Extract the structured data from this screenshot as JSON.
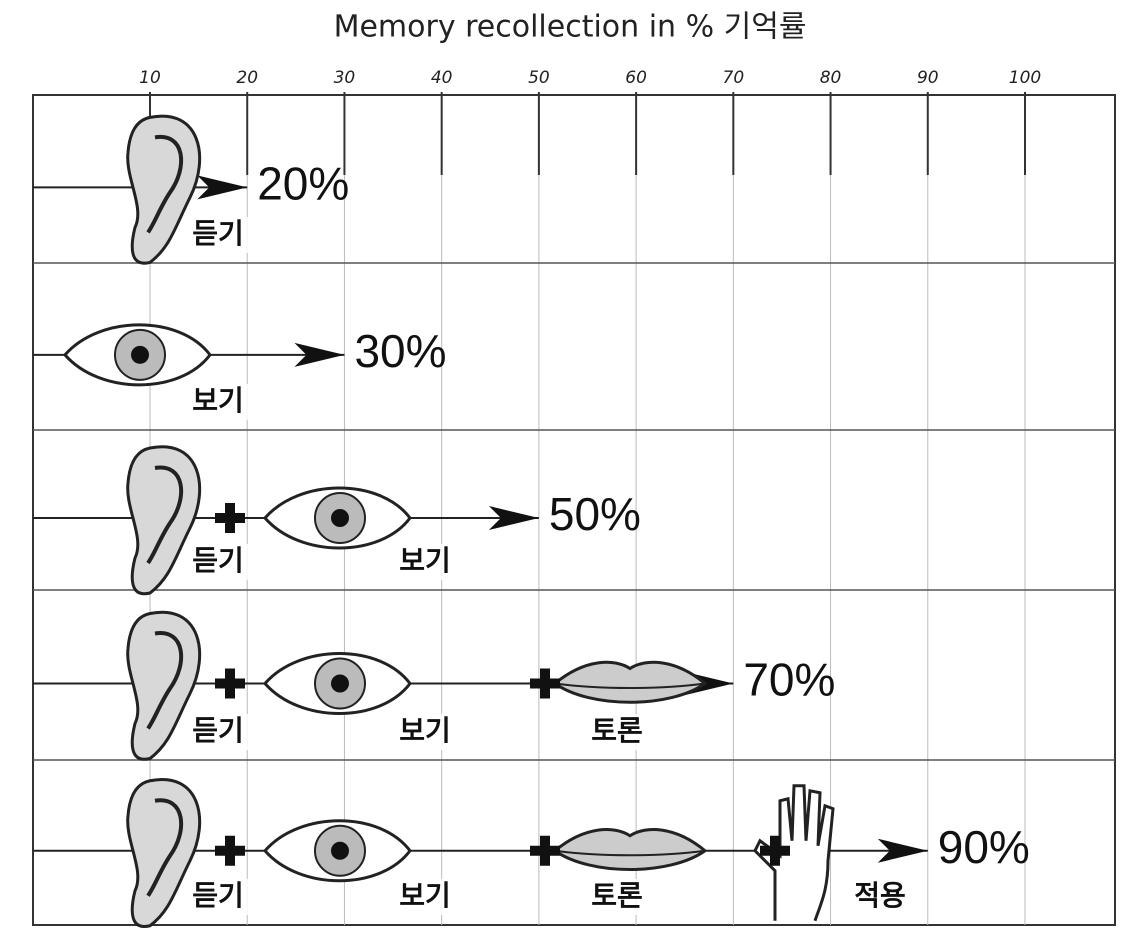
{
  "title": "Memory recollection in % 기억률",
  "axis": {
    "ticks": [
      10,
      20,
      30,
      40,
      50,
      60,
      70,
      80,
      90,
      100
    ]
  },
  "rows": [
    {
      "labels": [
        "듣기"
      ],
      "value": 20,
      "value_label": "20%"
    },
    {
      "labels": [
        "보기"
      ],
      "value": 30,
      "value_label": "30%"
    },
    {
      "labels": [
        "듣기",
        "보기"
      ],
      "value": 50,
      "value_label": "50%"
    },
    {
      "labels": [
        "듣기",
        "보기",
        "토론"
      ],
      "value": 70,
      "value_label": "70%"
    },
    {
      "labels": [
        "듣기",
        "보기",
        "토론",
        "적용"
      ],
      "value": 90,
      "value_label": "90%"
    }
  ]
}
